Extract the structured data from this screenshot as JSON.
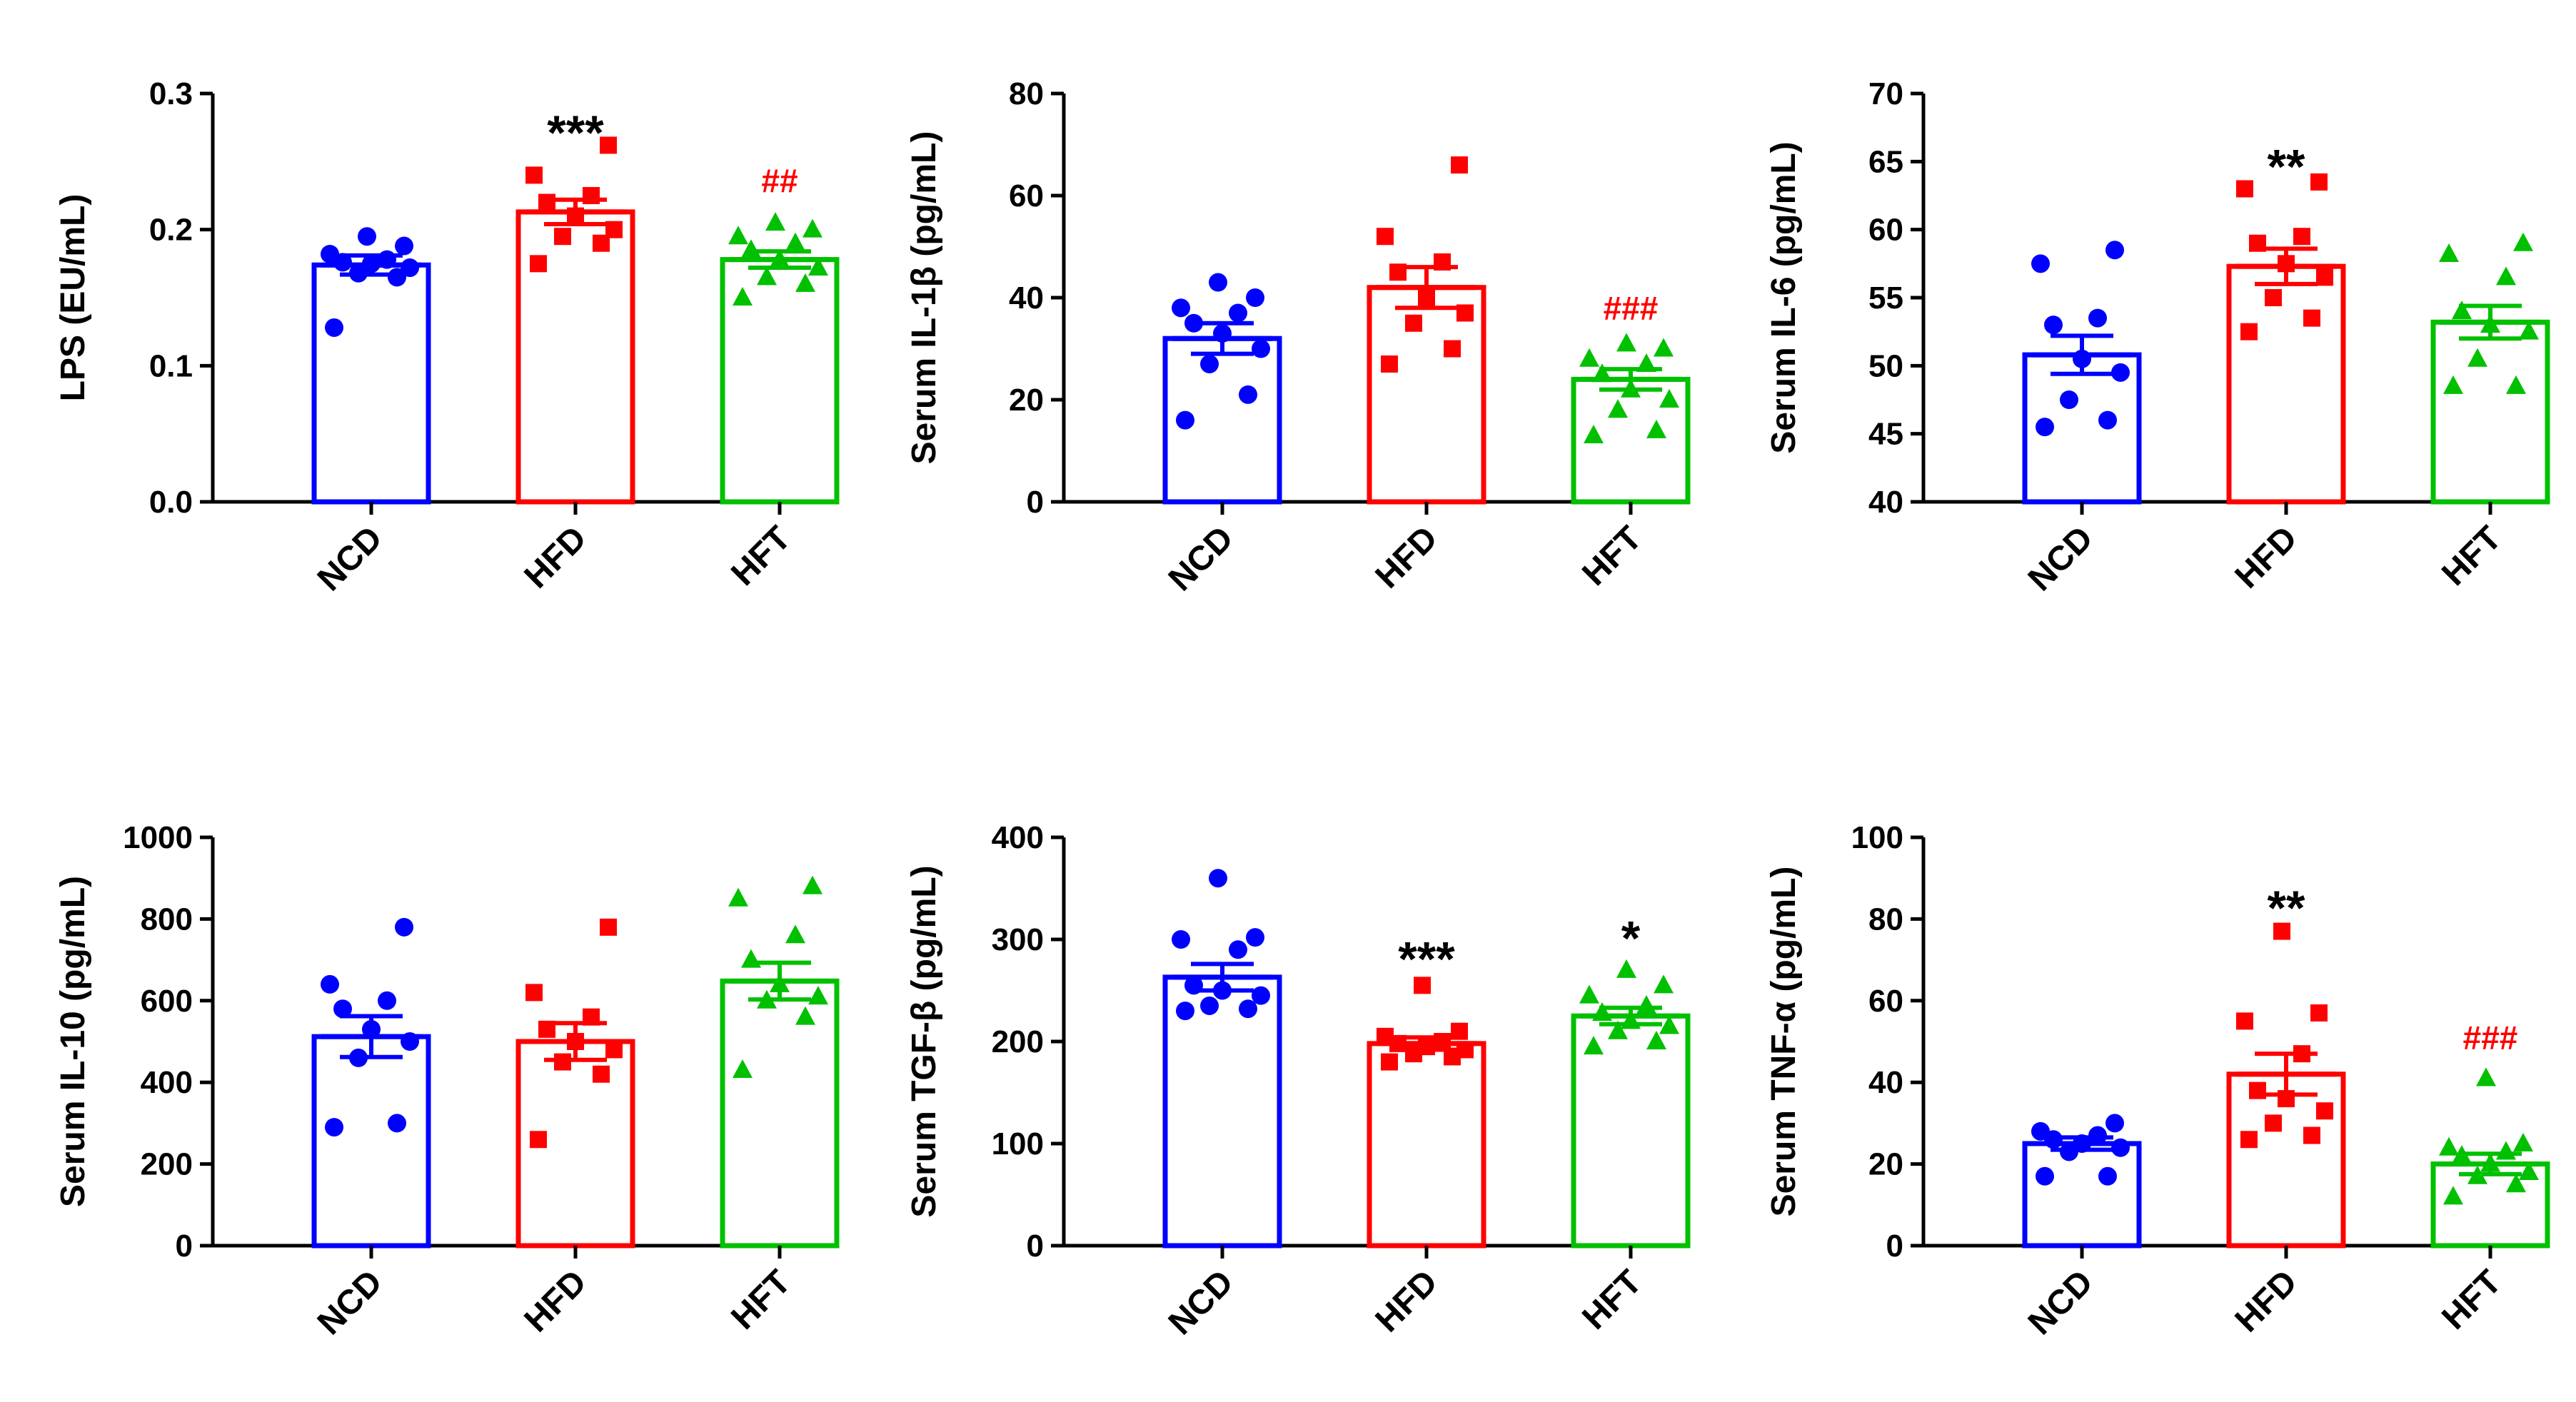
{
  "colors": {
    "NCD": "#0000ff",
    "HFD": "#ff0000",
    "HFT": "#00c000",
    "axis": "#000000",
    "hash": "#ff0000"
  },
  "markers": {
    "NCD": "circle",
    "HFD": "square",
    "HFT": "triangle"
  },
  "chart_data": [
    {
      "type": "bar",
      "ylabel": "LPS (EU/mL)",
      "categories": [
        "NCD",
        "HFD",
        "HFT"
      ],
      "ylim": [
        0,
        0.3
      ],
      "yticks": [
        0.0,
        0.1,
        0.2,
        0.3
      ],
      "ytick_labels": [
        "0.0",
        "0.1",
        "0.2",
        "0.3"
      ],
      "means": [
        0.174,
        0.213,
        0.178
      ],
      "sem": [
        0.007,
        0.009,
        0.006
      ],
      "points": [
        [
          0.128,
          0.165,
          0.168,
          0.172,
          0.175,
          0.176,
          0.178,
          0.182,
          0.188,
          0.195
        ],
        [
          0.175,
          0.19,
          0.195,
          0.2,
          0.21,
          0.22,
          0.225,
          0.24,
          0.262
        ],
        [
          0.15,
          0.16,
          0.165,
          0.172,
          0.178,
          0.185,
          0.19,
          0.195,
          0.2,
          0.205
        ]
      ],
      "annotations": [
        {
          "category": "HFD",
          "text": "***",
          "y": 0.278,
          "style": "star"
        },
        {
          "category": "HFT",
          "text": "##",
          "y": 0.236,
          "style": "hash"
        }
      ]
    },
    {
      "type": "bar",
      "ylabel": "Serum IL-1β (pg/mL)",
      "categories": [
        "NCD",
        "HFD",
        "HFT"
      ],
      "ylim": [
        0,
        80
      ],
      "yticks": [
        0,
        20,
        40,
        60,
        80
      ],
      "ytick_labels": [
        "0",
        "20",
        "40",
        "60",
        "80"
      ],
      "means": [
        32,
        42,
        24
      ],
      "sem": [
        3,
        4,
        2
      ],
      "points": [
        [
          16,
          21,
          27,
          30,
          33,
          35,
          37,
          38,
          40,
          43
        ],
        [
          27,
          30,
          35,
          37,
          40,
          45,
          47,
          52,
          66
        ],
        [
          13,
          14,
          18,
          20,
          22,
          25,
          27,
          28,
          30,
          31
        ]
      ],
      "annotations": [
        {
          "category": "HFT",
          "text": "###",
          "y": 38,
          "style": "hash"
        }
      ]
    },
    {
      "type": "bar",
      "ylabel": "Serum IL-6 (pg/mL)",
      "categories": [
        "NCD",
        "HFD",
        "HFT"
      ],
      "ylim": [
        40,
        70
      ],
      "yticks": [
        40,
        45,
        50,
        55,
        60,
        65,
        70
      ],
      "ytick_labels": [
        "40",
        "45",
        "50",
        "55",
        "60",
        "65",
        "70"
      ],
      "means": [
        50.8,
        57.3,
        53.2
      ],
      "sem": [
        1.4,
        1.3,
        1.2
      ],
      "points": [
        [
          45.5,
          46,
          47.5,
          49.5,
          50.5,
          53,
          53.5,
          57.5,
          58.5
        ],
        [
          52.5,
          53.5,
          55,
          56.5,
          57.5,
          59,
          59.5,
          63,
          63.5
        ],
        [
          48.5,
          48.5,
          50.5,
          52.5,
          53,
          54,
          56.5,
          58.2,
          59
        ]
      ],
      "annotations": [
        {
          "category": "HFD",
          "text": "**",
          "y": 65.3,
          "style": "star"
        }
      ]
    },
    {
      "type": "bar",
      "ylabel": "Serum IL-10 (pg/mL)",
      "categories": [
        "NCD",
        "HFD",
        "HFT"
      ],
      "ylim": [
        0,
        1000
      ],
      "yticks": [
        0,
        200,
        400,
        600,
        800,
        1000
      ],
      "ytick_labels": [
        "0",
        "200",
        "400",
        "600",
        "800",
        "1000"
      ],
      "means": [
        512,
        500,
        648
      ],
      "sem": [
        50,
        45,
        45
      ],
      "points": [
        [
          290,
          300,
          460,
          500,
          530,
          580,
          600,
          640,
          780
        ],
        [
          260,
          420,
          450,
          480,
          500,
          530,
          560,
          620,
          780
        ],
        [
          430,
          560,
          600,
          610,
          640,
          700,
          760,
          850,
          880
        ]
      ],
      "annotations": []
    },
    {
      "type": "bar",
      "ylabel": "Serum TGF-β (pg/mL)",
      "categories": [
        "NCD",
        "HFD",
        "HFT"
      ],
      "ylim": [
        0,
        400
      ],
      "yticks": [
        0,
        100,
        200,
        300,
        400
      ],
      "ytick_labels": [
        "0",
        "100",
        "200",
        "300",
        "400"
      ],
      "means": [
        263,
        198,
        225
      ],
      "sem": [
        13,
        6,
        8
      ],
      "points": [
        [
          230,
          232,
          235,
          245,
          250,
          255,
          290,
          300,
          302,
          360
        ],
        [
          180,
          185,
          188,
          192,
          195,
          198,
          200,
          205,
          210,
          255
        ],
        [
          195,
          200,
          210,
          215,
          220,
          228,
          235,
          245,
          255,
          270
        ]
      ],
      "annotations": [
        {
          "category": "HFD",
          "text": "***",
          "y": 290,
          "style": "star"
        },
        {
          "category": "HFT",
          "text": "*",
          "y": 310,
          "style": "star"
        }
      ]
    },
    {
      "type": "bar",
      "ylabel": "Serum TNF-α (pg/mL)",
      "categories": [
        "NCD",
        "HFD",
        "HFT"
      ],
      "ylim": [
        0,
        100
      ],
      "yticks": [
        0,
        20,
        40,
        60,
        80,
        100
      ],
      "ytick_labels": [
        "0",
        "20",
        "40",
        "60",
        "80",
        "100"
      ],
      "means": [
        25,
        42,
        20
      ],
      "sem": [
        1.5,
        5,
        2.5
      ],
      "points": [
        [
          17,
          17,
          23,
          24,
          25,
          26,
          27,
          28,
          30
        ],
        [
          26,
          27,
          30,
          33,
          36,
          38,
          47,
          55,
          57,
          77
        ],
        [
          12,
          15,
          17,
          18,
          20,
          22,
          23,
          24,
          25,
          41
        ]
      ],
      "annotations": [
        {
          "category": "HFD",
          "text": "**",
          "y": 85,
          "style": "star"
        },
        {
          "category": "HFT",
          "text": "###",
          "y": 51,
          "style": "hash"
        }
      ]
    }
  ]
}
